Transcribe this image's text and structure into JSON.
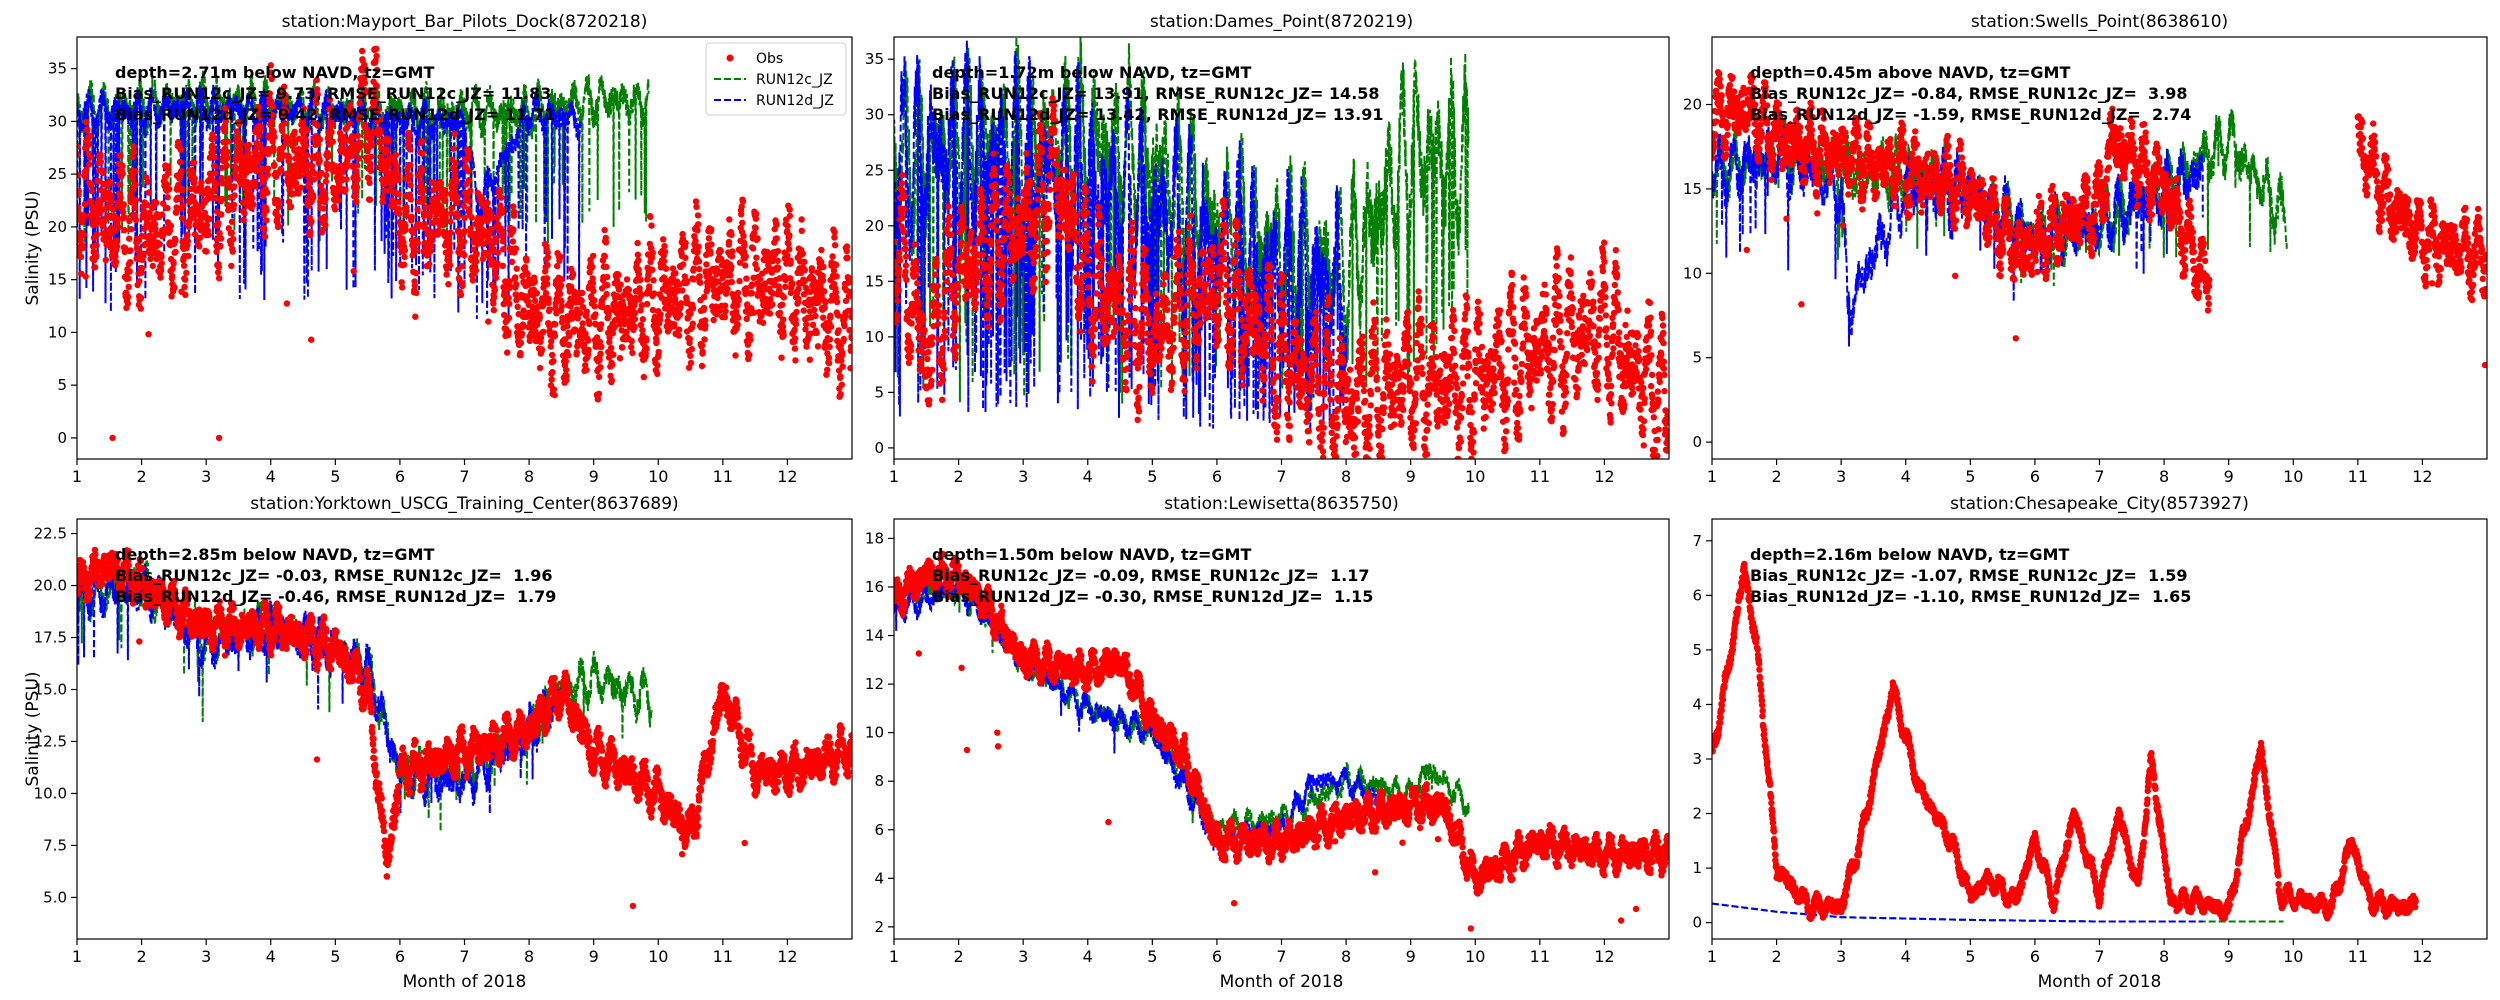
{
  "figure": {
    "legend_labels": {
      "obs": "Obs",
      "run12c": "RUN12c_JZ",
      "run12d": "RUN12d_JZ"
    },
    "colors": {
      "obs": "#ff0000",
      "run12c": "#008000",
      "run12d": "#0000ff",
      "axis": "#000000"
    },
    "x_axis_label": "Month of 2018",
    "y_axis_label": "Salinity (PSU)"
  },
  "chart_data": [
    {
      "type": "scatter",
      "title": "station:Mayport_Bar_Pilots_Dock(8720218)",
      "info": [
        "depth=2.71m below NAVD, tz=GMT",
        "Bias_RUN12c_JZ= 9.73, RMSE_RUN12c_JZ= 11.83",
        "Bias_RUN12d_JZ= 9.42, RMSE_RUN12d_JZ= 11.71"
      ],
      "xlim": [
        1,
        13
      ],
      "ylim": [
        -2,
        38
      ],
      "xticks": [
        "1",
        "2",
        "3",
        "4",
        "5",
        "6",
        "7",
        "8",
        "9",
        "10",
        "11",
        "12"
      ],
      "yticks": [
        "0",
        "5",
        "10",
        "15",
        "20",
        "25",
        "30",
        "35"
      ],
      "ylabel": "Salinity (PSU)",
      "xlabel": "",
      "legend": "top-right",
      "series": [
        {
          "name": "Obs",
          "style": "dots",
          "end": 13.0,
          "amp": 5.5,
          "noise": 3,
          "spikes": 6,
          "x": [
            1,
            1.5,
            2,
            3,
            4,
            5,
            5.6,
            6,
            7,
            7.5,
            8,
            9,
            10,
            11,
            12,
            12.9
          ],
          "y": [
            24,
            21,
            19,
            22,
            27,
            25,
            31,
            21,
            21,
            18,
            12,
            11,
            13,
            15,
            15,
            11
          ],
          "points": [
            [
              1.55,
              0
            ],
            [
              3.2,
              0
            ]
          ]
        },
        {
          "name": "RUN12c_JZ",
          "style": "dashed",
          "end": 9.85,
          "amp": 1.8,
          "noise": 1.2,
          "spikes": 10,
          "spike_depth": 0.4,
          "x": [
            1,
            2,
            3,
            4,
            5,
            6,
            7,
            8,
            9,
            9.85
          ],
          "y": [
            31,
            31.5,
            32,
            31.5,
            31,
            31,
            31,
            31,
            32,
            32
          ]
        },
        {
          "name": "RUN12d_JZ",
          "style": "dashed",
          "end": 8.8,
          "amp": 1.5,
          "noise": 1,
          "spikes": 14,
          "spike_depth": 0.6,
          "x": [
            1,
            2,
            3,
            4,
            5,
            6,
            7,
            7.2,
            8,
            8.8
          ],
          "y": [
            31,
            31,
            31.5,
            31,
            31,
            30,
            30,
            22,
            31,
            30
          ]
        }
      ]
    },
    {
      "type": "scatter",
      "title": "station:Dames_Point(8720219)",
      "info": [
        "depth=1.72m below NAVD, tz=GMT",
        "Bias_RUN12c_JZ= 13.91, RMSE_RUN12c_JZ= 14.58",
        "Bias_RUN12d_JZ= 13.42, RMSE_RUN12d_JZ= 13.91"
      ],
      "xlim": [
        1,
        13
      ],
      "ylim": [
        -1,
        37
      ],
      "xticks": [
        "1",
        "2",
        "3",
        "4",
        "5",
        "6",
        "7",
        "8",
        "9",
        "10",
        "11",
        "12"
      ],
      "yticks": [
        "0",
        "5",
        "10",
        "15",
        "20",
        "25",
        "30",
        "35"
      ],
      "ylabel": "",
      "xlabel": "",
      "series": [
        {
          "name": "Obs",
          "style": "dots",
          "end": 13.0,
          "amp": 6,
          "noise": 3,
          "spikes": 4,
          "x": [
            1,
            1.5,
            2,
            3,
            3.5,
            4,
            5,
            6,
            7,
            8,
            9,
            10,
            11,
            12,
            12.9
          ],
          "y": [
            20,
            8,
            16,
            20,
            25,
            15,
            10,
            15,
            8,
            4,
            6,
            6,
            9,
            11,
            4
          ]
        },
        {
          "name": "RUN12c_JZ",
          "style": "dashed",
          "end": 9.9,
          "amp": 7,
          "noise": 3,
          "spikes": 14,
          "spike_depth": 0.8,
          "x": [
            1,
            2,
            3,
            4,
            5,
            6,
            7,
            8,
            9,
            9.9
          ],
          "y": [
            26,
            27,
            28,
            28,
            26,
            20,
            18,
            16,
            27,
            26
          ]
        },
        {
          "name": "RUN12d_JZ",
          "style": "dashed",
          "end": 8.0,
          "amp": 8,
          "noise": 3,
          "spikes": 24,
          "spike_depth": 0.9,
          "x": [
            1,
            2,
            3,
            4,
            5,
            6,
            7,
            8
          ],
          "y": [
            26,
            27,
            26,
            24,
            22,
            18,
            16,
            15
          ]
        }
      ]
    },
    {
      "type": "scatter",
      "title": "station:Swells_Point(8638610)",
      "info": [
        "depth=0.45m above NAVD, tz=GMT",
        "Bias_RUN12c_JZ= -0.84, RMSE_RUN12c_JZ=  3.98",
        "Bias_RUN12d_JZ= -1.59, RMSE_RUN12d_JZ=  2.74"
      ],
      "xlim": [
        1,
        13
      ],
      "ylim": [
        -1,
        24
      ],
      "xticks": [
        "1",
        "2",
        "3",
        "4",
        "5",
        "6",
        "7",
        "8",
        "9",
        "10",
        "11",
        "12"
      ],
      "yticks": [
        "0",
        "5",
        "10",
        "15",
        "20"
      ],
      "ylabel": "",
      "xlabel": "",
      "series": [
        {
          "name": "Obs",
          "style": "dots",
          "gap": [
            8.7,
            11.0
          ],
          "end": 13.0,
          "amp": 1.8,
          "noise": 1.2,
          "spikes": 5,
          "x": [
            1,
            1.5,
            2,
            3,
            4,
            5,
            5.8,
            6,
            7,
            7.2,
            8,
            8.7,
            11.0,
            11.5,
            12,
            12.9
          ],
          "y": [
            19,
            20,
            18,
            17,
            16,
            15,
            11,
            12,
            14,
            18,
            15,
            9,
            18,
            14,
            12,
            11
          ]
        },
        {
          "name": "RUN12c_JZ",
          "style": "dashed",
          "end": 9.9,
          "amp": 1.5,
          "noise": 1,
          "spikes": 3,
          "spike_depth": 0.3,
          "x": [
            1,
            2,
            3,
            4,
            5,
            6,
            7,
            8,
            9,
            9.9
          ],
          "y": [
            16,
            17,
            16,
            16,
            15,
            12,
            13,
            15,
            18,
            13
          ]
        },
        {
          "name": "RUN12d_JZ",
          "style": "dashed",
          "end": 8.6,
          "amp": 1.6,
          "noise": 1,
          "spikes": 4,
          "spike_depth": 0.3,
          "x": [
            1,
            2,
            3,
            3.1,
            4,
            5,
            6,
            7,
            8,
            8.6
          ],
          "y": [
            16,
            17,
            15,
            8,
            15,
            15,
            12,
            13,
            15,
            16
          ]
        }
      ]
    },
    {
      "type": "scatter",
      "title": "station:Yorktown_USCG_Training_Center(8637689)",
      "info": [
        "depth=2.85m below NAVD, tz=GMT",
        "Bias_RUN12c_JZ= -0.03, RMSE_RUN12c_JZ=  1.96",
        "Bias_RUN12d_JZ= -0.46, RMSE_RUN12d_JZ=  1.79"
      ],
      "xlim": [
        1,
        13
      ],
      "ylim": [
        3,
        23.2
      ],
      "xticks": [
        "1",
        "2",
        "3",
        "4",
        "5",
        "6",
        "7",
        "8",
        "9",
        "10",
        "11",
        "12"
      ],
      "yticks": [
        "5.0",
        "7.5",
        "10.0",
        "12.5",
        "15.0",
        "17.5",
        "20.0",
        "22.5"
      ],
      "ylabel": "Salinity (PSU)",
      "xlabel": "Month of 2018",
      "series": [
        {
          "name": "Obs",
          "style": "dots",
          "end": 13.0,
          "amp": 0.8,
          "noise": 0.6,
          "spikes": 3,
          "x": [
            1,
            1.5,
            2,
            3,
            4,
            5,
            5.5,
            5.8,
            6,
            7,
            8,
            8.5,
            9,
            10,
            10.5,
            11,
            11.5,
            12,
            12.9
          ],
          "y": [
            20,
            21,
            20,
            18,
            18,
            17,
            15,
            6.5,
            11,
            12,
            13,
            15,
            12,
            10,
            8,
            15,
            11,
            11,
            12
          ]
        },
        {
          "name": "RUN12c_JZ",
          "style": "dashed",
          "end": 9.9,
          "amp": 0.9,
          "noise": 0.6,
          "spikes": 2,
          "spike_depth": 0.2,
          "x": [
            1,
            2,
            3,
            4,
            5,
            5.5,
            6,
            7,
            8,
            8.5,
            9,
            9.9
          ],
          "y": [
            19.5,
            20,
            17.5,
            18,
            17,
            16,
            11,
            11,
            13,
            15,
            15.5,
            14.5
          ]
        },
        {
          "name": "RUN12d_JZ",
          "style": "dashed",
          "end": 8.6,
          "amp": 0.9,
          "noise": 0.6,
          "spikes": 2,
          "spike_depth": 0.2,
          "x": [
            1,
            2,
            3,
            4,
            5,
            5.5,
            6,
            7,
            8,
            8.6
          ],
          "y": [
            19.5,
            20,
            17,
            18,
            17,
            16,
            11,
            10.5,
            13,
            15
          ]
        }
      ]
    },
    {
      "type": "scatter",
      "title": "station:Lewisetta(8635750)",
      "info": [
        "depth=1.50m below NAVD, tz=GMT",
        "Bias_RUN12c_JZ= -0.09, RMSE_RUN12c_JZ=  1.17",
        "Bias_RUN12d_JZ= -0.30, RMSE_RUN12d_JZ=  1.15"
      ],
      "xlim": [
        1,
        13
      ],
      "ylim": [
        1.5,
        18.8
      ],
      "xticks": [
        "1",
        "2",
        "3",
        "4",
        "5",
        "6",
        "7",
        "8",
        "9",
        "10",
        "11",
        "12"
      ],
      "yticks": [
        "2",
        "4",
        "6",
        "8",
        "10",
        "12",
        "14",
        "16",
        "18"
      ],
      "ylabel": "",
      "xlabel": "Month of 2018",
      "series": [
        {
          "name": "Obs",
          "style": "dots",
          "end": 13.0,
          "amp": 0.5,
          "noise": 0.45,
          "spikes": 4,
          "x": [
            1,
            1.5,
            2,
            2.5,
            3,
            4,
            4.5,
            5,
            5.5,
            6,
            7,
            8,
            9,
            9.5,
            10,
            11,
            12,
            12.9
          ],
          "y": [
            15.5,
            16.5,
            16.5,
            15,
            13,
            12.5,
            13,
            10.5,
            9,
            5.5,
            5.5,
            6.5,
            7,
            7,
            4,
            5.5,
            5,
            5
          ]
        },
        {
          "name": "RUN12c_JZ",
          "style": "dashed",
          "end": 9.9,
          "amp": 0.45,
          "noise": 0.35,
          "spikes": 1,
          "spike_depth": 0.1,
          "x": [
            1,
            2,
            3,
            4,
            5,
            6,
            7,
            8,
            9,
            9.3,
            9.9
          ],
          "y": [
            15.5,
            16,
            13,
            11,
            10,
            6,
            6.5,
            8,
            7.5,
            8.5,
            7
          ]
        },
        {
          "name": "RUN12d_JZ",
          "style": "dashed",
          "end": 8.6,
          "amp": 0.45,
          "noise": 0.35,
          "spikes": 1,
          "spike_depth": 0.1,
          "x": [
            1,
            2,
            3,
            4,
            5,
            6,
            7,
            7.5,
            8,
            8.6
          ],
          "y": [
            15,
            16,
            13,
            11,
            10,
            5.5,
            6,
            8,
            8,
            7
          ]
        }
      ]
    },
    {
      "type": "scatter",
      "title": "station:Chesapeake_City(8573927)",
      "info": [
        "depth=2.16m below NAVD, tz=GMT",
        "Bias_RUN12c_JZ= -1.07, RMSE_RUN12c_JZ=  1.59",
        "Bias_RUN12d_JZ= -1.10, RMSE_RUN12d_JZ=  1.65"
      ],
      "xlim": [
        1,
        13
      ],
      "ylim": [
        -0.3,
        7.4
      ],
      "xticks": [
        "1",
        "2",
        "3",
        "4",
        "5",
        "6",
        "7",
        "8",
        "9",
        "10",
        "11",
        "12"
      ],
      "yticks": [
        "0",
        "1",
        "2",
        "3",
        "4",
        "5",
        "6",
        "7"
      ],
      "ylabel": "",
      "xlabel": "Month of 2018",
      "series": [
        {
          "name": "Obs",
          "style": "dots",
          "end": 11.9,
          "amp": 0.15,
          "noise": 0.1,
          "spikes": 0,
          "x": [
            1,
            1.3,
            1.5,
            1.7,
            2,
            2.5,
            3,
            3.3,
            3.8,
            4.2,
            4.7,
            5,
            5.3,
            5.7,
            6,
            6.3,
            6.6,
            7,
            7.3,
            7.6,
            7.8,
            8.1,
            8.5,
            9,
            9.3,
            9.5,
            9.8,
            10.2,
            10.6,
            10.9,
            11.2,
            11.5,
            11.9
          ],
          "y": [
            3,
            5,
            6.5,
            5,
            1,
            0.3,
            0.3,
            1.5,
            4.3,
            2.5,
            1.5,
            0.5,
            0.8,
            0.4,
            1.5,
            0.4,
            2.0,
            0.5,
            2.0,
            0.6,
            3.0,
            0.4,
            0.4,
            0.2,
            2.0,
            3.2,
            0.5,
            0.4,
            0.3,
            1.5,
            0.4,
            0.3,
            0.3
          ]
        },
        {
          "name": "RUN12c_JZ",
          "style": "dashed",
          "end": 9.85,
          "amp": 0,
          "noise": 0,
          "spikes": 0,
          "x": [
            1,
            2,
            3,
            5,
            7,
            9,
            9.85
          ],
          "y": [
            0.35,
            0.2,
            0.1,
            0.05,
            0.02,
            0.02,
            0.02
          ]
        },
        {
          "name": "RUN12d_JZ",
          "style": "dashed",
          "end": 8.6,
          "amp": 0,
          "noise": 0,
          "spikes": 0,
          "x": [
            1,
            2,
            3,
            5,
            7,
            8.6
          ],
          "y": [
            0.35,
            0.2,
            0.1,
            0.05,
            0.02,
            0.02
          ]
        }
      ]
    }
  ]
}
